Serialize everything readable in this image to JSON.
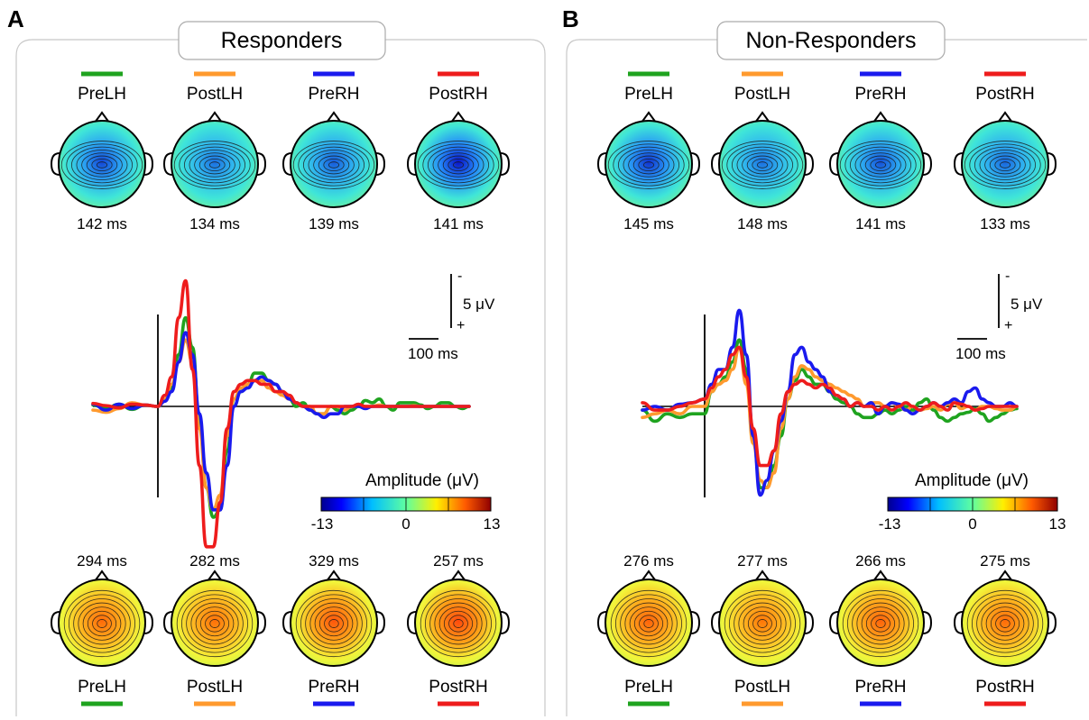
{
  "colors": {
    "PreLH": "#1fa31f",
    "PostLH": "#ff9a2e",
    "PreRH": "#1a1aee",
    "PostRH": "#ee1c1c"
  },
  "panels": [
    {
      "letter": "A",
      "title": "Responders",
      "conditions": [
        "PreLH",
        "PostLH",
        "PreRH",
        "PostRH"
      ],
      "top_latencies": [
        "142 ms",
        "134 ms",
        "139 ms",
        "141 ms"
      ],
      "bottom_latencies": [
        "294 ms",
        "282 ms",
        "329 ms",
        "257 ms"
      ],
      "top_map_intensity": [
        0.75,
        0.55,
        0.65,
        1.0
      ],
      "bottom_map_intensity": [
        0.55,
        0.5,
        0.7,
        0.8
      ],
      "scale": {
        "voltage_label": "5 μV",
        "minus": "-",
        "plus": "+",
        "time_label": "100 ms"
      },
      "colorbar": {
        "title": "Amplitude (μV)",
        "ticks": [
          "-13",
          "0",
          "13"
        ]
      }
    },
    {
      "letter": "B",
      "title": "Non-Responders",
      "conditions": [
        "PreLH",
        "PostLH",
        "PreRH",
        "PostRH"
      ],
      "top_latencies": [
        "145 ms",
        "148 ms",
        "141 ms",
        "133 ms"
      ],
      "bottom_latencies": [
        "276 ms",
        "277 ms",
        "266 ms",
        "275 ms"
      ],
      "top_map_intensity": [
        0.85,
        0.55,
        0.7,
        0.6
      ],
      "bottom_map_intensity": [
        0.6,
        0.45,
        0.6,
        0.55
      ],
      "scale": {
        "voltage_label": "5 μV",
        "minus": "-",
        "plus": "+",
        "time_label": "100 ms"
      },
      "colorbar": {
        "title": "Amplitude (μV)",
        "ticks": [
          "-13",
          "0",
          "13"
        ]
      }
    }
  ],
  "chart_data": [
    {
      "type": "line",
      "x": [
        -100,
        -80,
        -60,
        -40,
        -20,
        0,
        20,
        40,
        60,
        80,
        100,
        120,
        140,
        160,
        180,
        200,
        220,
        240,
        260,
        280,
        300,
        320,
        340,
        360,
        380,
        400,
        420,
        440,
        460,
        480,
        500,
        520,
        540,
        560,
        580,
        600,
        620,
        640,
        660,
        680,
        700,
        720,
        740,
        760,
        780,
        800,
        820,
        840,
        860,
        880,
        900
      ],
      "series": [
        {
          "name": "PreLH",
          "values": [
            0.2,
            -0.3,
            0.3,
            -0.4,
            0.2,
            0,
            0.8,
            2.5,
            7,
            12,
            8,
            -2,
            -11,
            -15,
            -14,
            -6,
            1,
            2,
            3,
            4.5,
            4.5,
            3.5,
            3,
            2,
            1,
            0,
            0.5,
            -0.5,
            -1,
            -1,
            0,
            -0.5,
            -1,
            -0.5,
            0,
            0.8,
            0.5,
            1,
            0,
            -0.5,
            0.5,
            0.5,
            0.5,
            0.2,
            -0.3,
            0,
            0.5,
            0.5,
            0,
            -0.3,
            0
          ]
        },
        {
          "name": "PostLH",
          "values": [
            -0.5,
            -0.8,
            -0.3,
            0.5,
            0.2,
            0,
            1,
            3,
            6,
            9,
            6,
            -3,
            -11,
            -14,
            -12,
            -4,
            1,
            2.5,
            3,
            3.5,
            3.5,
            2.5,
            2,
            1.5,
            1,
            0.5,
            0,
            0,
            -1,
            -1,
            0,
            0,
            -0.5,
            0,
            0,
            0,
            0,
            0.2,
            0,
            0,
            0,
            0,
            0.1,
            0,
            0,
            0,
            0,
            0,
            0,
            0,
            0
          ]
        },
        {
          "name": "PreRH",
          "values": [
            0.3,
            -0.5,
            0.3,
            -0.3,
            0.2,
            0,
            0.7,
            2,
            6,
            10,
            7,
            -1,
            -9,
            -14,
            -14,
            -8,
            0,
            2,
            2.5,
            3.5,
            4,
            3.5,
            3,
            2,
            1,
            0.5,
            0,
            -0.5,
            -1,
            -1.5,
            -1,
            -1,
            0,
            0,
            0,
            -0.3,
            0,
            0,
            0,
            0,
            0,
            0,
            0,
            0,
            0,
            0,
            0,
            0,
            0,
            0,
            0
          ]
        },
        {
          "name": "PostRH",
          "values": [
            0.4,
            0.1,
            -0.2,
            0.3,
            0.2,
            0,
            1.5,
            4,
            12,
            17,
            5,
            -8,
            -19,
            -19,
            -13,
            -3,
            2,
            3,
            3.5,
            3.5,
            3,
            3,
            2,
            2,
            1.5,
            0.5,
            0,
            0,
            0,
            0,
            0,
            0,
            0,
            0,
            0.3,
            0,
            0,
            0,
            0,
            0,
            0,
            0,
            0,
            0,
            0,
            0,
            0,
            0,
            0,
            0,
            0
          ]
        }
      ]
    },
    {
      "type": "line",
      "x": [
        -100,
        -80,
        -60,
        -40,
        -20,
        0,
        20,
        40,
        60,
        80,
        100,
        120,
        140,
        160,
        180,
        200,
        220,
        240,
        260,
        280,
        300,
        320,
        340,
        360,
        380,
        400,
        420,
        440,
        460,
        480,
        500,
        520,
        540,
        560,
        580,
        600,
        620,
        640,
        660,
        680,
        700,
        720,
        740,
        760,
        780,
        800,
        820,
        840,
        860,
        880,
        900
      ],
      "series": [
        {
          "name": "PreLH",
          "values": [
            -0.5,
            -2,
            -1,
            -1.5,
            -1,
            -1,
            2,
            3,
            4,
            6,
            9,
            5,
            -4,
            -11,
            -11,
            -8,
            -4,
            1,
            3.5,
            5,
            4,
            3,
            3,
            2,
            1,
            0.5,
            0,
            -1,
            -1.5,
            -1.5,
            -1,
            -0.5,
            -1,
            -0.5,
            0,
            -0.5,
            0.5,
            1,
            -0.5,
            -1.5,
            -2,
            -1.5,
            -1,
            -0.8,
            -0.3,
            -1,
            -2,
            -1.5,
            -1,
            -0.5,
            -0.3
          ]
        },
        {
          "name": "PostLH",
          "values": [
            -1.5,
            -1,
            -0.5,
            -1,
            0,
            0,
            2,
            3,
            3.5,
            5,
            8,
            3,
            -5,
            -10,
            -11,
            -9,
            -3,
            1,
            4,
            5.5,
            5,
            4,
            3.5,
            3,
            2.5,
            2,
            1.5,
            1,
            0,
            0.5,
            0.5,
            0,
            0.5,
            0,
            -0.5,
            0,
            -0.5,
            -0.3,
            0,
            -0.5,
            0.3,
            0.5,
            -0.3,
            0,
            -0.5,
            0,
            0,
            -0.3,
            -0.5,
            -0.5,
            0
          ]
        },
        {
          "name": "PreRH",
          "values": [
            -0.5,
            0,
            -0.5,
            0.3,
            0.5,
            1,
            3,
            5,
            5,
            8,
            13,
            7,
            -4,
            -12,
            -10,
            -6,
            -2,
            2,
            7,
            8,
            6,
            5,
            4,
            2,
            1.5,
            1,
            0,
            0.5,
            0,
            0.5,
            -1,
            0,
            0.5,
            0.3,
            -0.5,
            -1,
            -0.5,
            0,
            0.5,
            0,
            0.5,
            1,
            0.5,
            2,
            2.5,
            1,
            0.5,
            0,
            0,
            0.5,
            0
          ]
        },
        {
          "name": "PostRH",
          "values": [
            0.5,
            -0.5,
            -0.5,
            0,
            0.5,
            1,
            2.5,
            4,
            5,
            7,
            8,
            4,
            -3,
            -8,
            -8,
            -6,
            -1,
            2,
            3,
            3.5,
            3,
            2.5,
            3,
            2.5,
            1.5,
            1,
            0,
            0.5,
            0,
            0,
            -0.5,
            0,
            -0.5,
            0,
            0.5,
            0,
            -0.5,
            0,
            0.5,
            0,
            -0.5,
            0.5,
            0.3,
            0,
            -0.5,
            -0.3,
            0,
            0,
            0,
            0,
            0
          ]
        }
      ]
    }
  ]
}
